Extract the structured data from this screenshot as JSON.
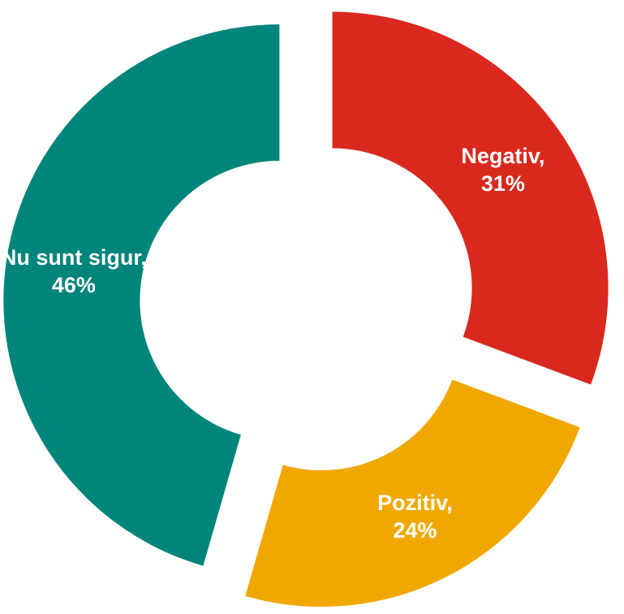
{
  "chart_data": {
    "type": "donut",
    "values": [
      31,
      24,
      46
    ],
    "value_labels": [
      "Negativ, 31%",
      "Pozitiv, 24%",
      "Nu sunt sigur, 46%"
    ],
    "colors": [
      "#d9291f",
      "#f0a800",
      "#00857a"
    ]
  }
}
